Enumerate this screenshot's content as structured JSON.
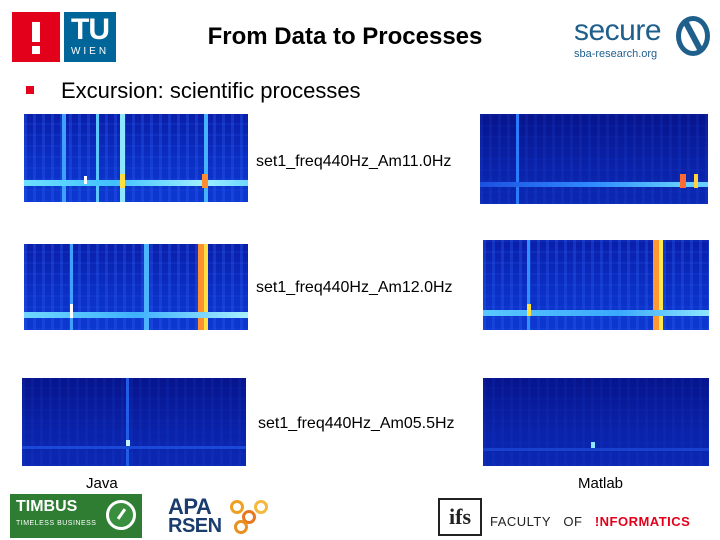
{
  "header": {
    "title": "From Data to Processes",
    "tu_logo": {
      "top": "TU",
      "bottom": "WIEN"
    },
    "secure_logo": {
      "word": "secure",
      "sub": "sba-research.org"
    }
  },
  "bullet": {
    "text": "Excursion: scientific processes"
  },
  "spectrograms": {
    "labels": [
      "set1_freq440Hz_Am11.0Hz",
      "set1_freq440Hz_Am12.0Hz",
      "set1_freq440Hz_Am05.5Hz"
    ]
  },
  "columns": {
    "left": "Java",
    "right": "Matlab"
  },
  "footer": {
    "timbus": {
      "title": "TIMBUS",
      "subtitle": "TIMELESS BUSINESS"
    },
    "apa": {
      "top": "APA",
      "bottom": "RSEN"
    },
    "ifs": "ifs",
    "faculty": {
      "part1": "FACULTY",
      "part2": "OF",
      "part3": "!NFORMATICS"
    }
  },
  "colors": {
    "accent_red": "#e3001b",
    "tu_blue": "#006699",
    "secure_blue": "#1f5f8c",
    "spectrogram_base": "#0b2fc4"
  }
}
